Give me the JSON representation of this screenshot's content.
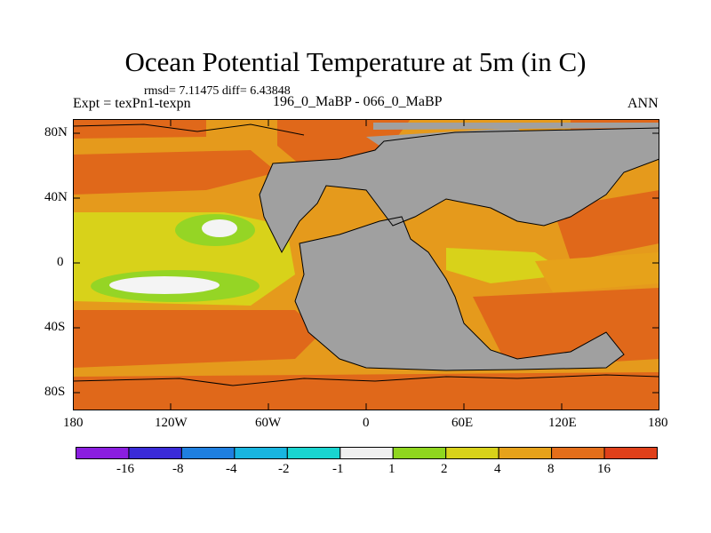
{
  "title": "Ocean Potential Temperature at 5m (in C)",
  "stats_line": "rmsd= 7.11475 diff= 6.43848",
  "experiment_label": "Expt = texPn1-texpn",
  "case_label": "196_0_MaBP - 066_0_MaBP",
  "period_label": "ANN",
  "y_ticks": [
    "80N",
    "40N",
    "0",
    "40S",
    "80S"
  ],
  "x_ticks": [
    "180",
    "120W",
    "60W",
    "0",
    "60E",
    "120E",
    "180"
  ],
  "colorbar": {
    "labels": [
      "-16",
      "-8",
      "-4",
      "-2",
      "-1",
      "1",
      "2",
      "4",
      "8",
      "16"
    ],
    "colors": [
      "#8b1ee0",
      "#3a2bd8",
      "#1f7fe0",
      "#18b5e0",
      "#19d4d0",
      "#efefef",
      "#8fd61f",
      "#d8d21a",
      "#e6a21a",
      "#e46e1a",
      "#e0401a"
    ]
  },
  "palette": {
    "land": "#a0a0a0",
    "warm_orange": "#e59a1c",
    "dark_orange": "#e0681a",
    "yellow": "#d8d21a",
    "green": "#95d525",
    "white": "#f4f4f4"
  }
}
